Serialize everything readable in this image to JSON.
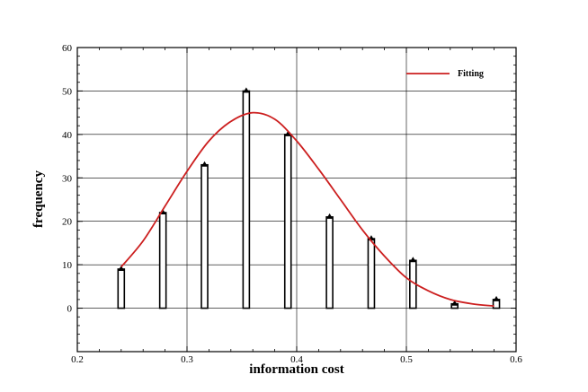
{
  "chart_data": {
    "type": "bar",
    "xlabel": "information cost",
    "ylabel": "frequency",
    "xlim": [
      0.2,
      0.6
    ],
    "ylim": [
      -10,
      60
    ],
    "xticks": [
      0.2,
      0.3,
      0.4,
      0.5,
      0.6
    ],
    "xtick_labels": [
      "0.2",
      "0.3",
      "0.4",
      "0.5",
      "0.6"
    ],
    "yticks": [
      0,
      10,
      20,
      30,
      40,
      50,
      60
    ],
    "ytick_labels": [
      "0",
      "10",
      "20",
      "30",
      "40",
      "50",
      "60"
    ],
    "grid": true,
    "legend_position": "top-right",
    "series": [
      {
        "type": "bar",
        "x": [
          0.24,
          0.278,
          0.316,
          0.354,
          0.392,
          0.43,
          0.468,
          0.506,
          0.544,
          0.582
        ],
        "values": [
          9,
          22,
          33,
          50,
          40,
          21,
          16,
          11,
          1,
          2
        ]
      },
      {
        "name": "Fitting",
        "type": "line",
        "color": "#cc1f1f",
        "x": [
          0.24,
          0.26,
          0.28,
          0.3,
          0.32,
          0.34,
          0.36,
          0.38,
          0.4,
          0.42,
          0.44,
          0.46,
          0.48,
          0.5,
          0.52,
          0.54,
          0.56,
          0.58
        ],
        "y": [
          9.5,
          15.5,
          23.5,
          31.5,
          38.5,
          43.0,
          45.0,
          43.5,
          38.5,
          32.0,
          25.0,
          18.0,
          12.0,
          7.0,
          4.0,
          2.0,
          1.0,
          0.5
        ]
      }
    ]
  }
}
